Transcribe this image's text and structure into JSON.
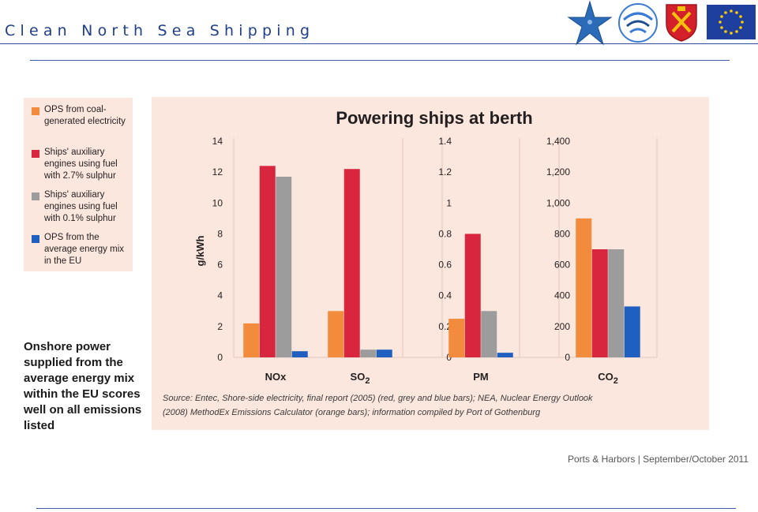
{
  "header": {
    "title": "Clean North Sea Shipping"
  },
  "legend": {
    "items": [
      {
        "label": "OPS from coal-generated electricity",
        "color": "#f28c3c"
      },
      {
        "label": "Ships' auxiliary engines using fuel with 2.7% sulphur",
        "color": "#d7263d"
      },
      {
        "label": "Ships' auxiliary engines using fuel with 0.1% sulphur",
        "color": "#9c9c9c"
      },
      {
        "label": "OPS from the average energy mix in the EU",
        "color": "#1f5fbf"
      }
    ]
  },
  "callout": {
    "text": "Onshore power supplied from the average energy mix within the EU scores well on all emissions listed"
  },
  "chart_data": {
    "type": "bar",
    "title": "Powering ships at berth",
    "ylabel": "g/kWh",
    "grid": false,
    "legend_position": "left",
    "source": "Source: Entec, Shore-side electricity, final report (2005) (red, grey and blue bars); NEA, Nuclear Energy Outlook (2008) MethodEx Emissions Calculator (orange bars); information compiled by Port of Gothenburg",
    "series_colors": [
      "#f28c3c",
      "#d7263d",
      "#9c9c9c",
      "#1f5fbf"
    ],
    "panels": [
      {
        "category": "NOx",
        "ylim": [
          0,
          14
        ],
        "ticks": [
          "0",
          "2",
          "4",
          "6",
          "8",
          "10",
          "12",
          "14"
        ],
        "values": [
          2.2,
          12.4,
          11.7,
          0.4
        ]
      },
      {
        "category": "SO",
        "category_sub": "2",
        "ylim": [
          0,
          14
        ],
        "ticks": [],
        "values": [
          3.0,
          12.2,
          0.5,
          0.5
        ]
      },
      {
        "category": "PM",
        "ylim": [
          0,
          1.4
        ],
        "ticks": [
          "0",
          "0.2",
          "0.4",
          "0.6",
          "0.8",
          "1",
          "1.2",
          "1.4"
        ],
        "values": [
          0.25,
          0.8,
          0.3,
          0.03
        ]
      },
      {
        "category": "CO",
        "category_sub": "2",
        "ylim": [
          0,
          1400
        ],
        "ticks": [
          "0",
          "200",
          "400",
          "600",
          "800",
          "1,000",
          "1,200",
          "1,400"
        ],
        "values": [
          900,
          700,
          700,
          330
        ]
      }
    ]
  },
  "footer": {
    "credit": "Ports & Harbors | September/October 2011"
  }
}
